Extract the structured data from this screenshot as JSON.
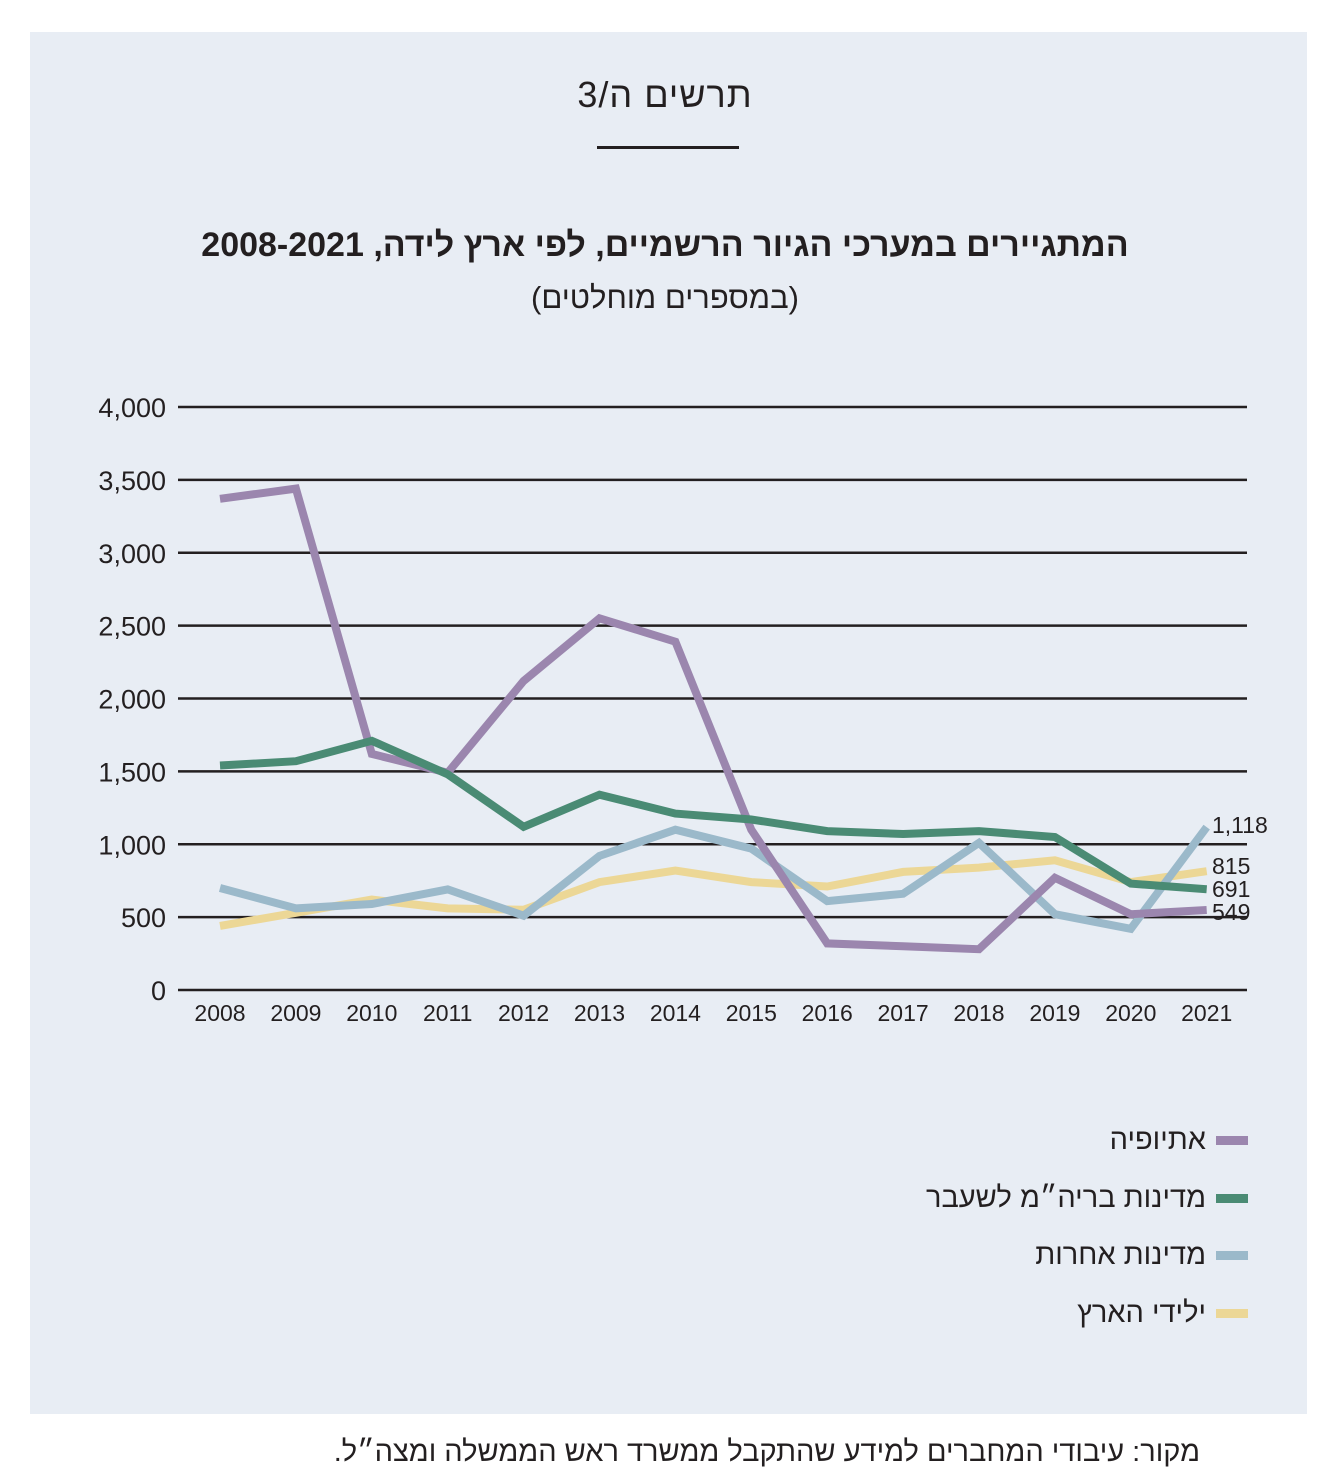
{
  "header": {
    "kicker": "תרשים ה/3",
    "title": "המתגיירים במערכי הגיור הרשמיים, לפי ארץ לידה, 2008-2021",
    "subtitle": "(במספרים מוחלטים)"
  },
  "source": "מקור: עיבודי המחברים למידע שהתקבל ממשרד ראש הממשלה ומצה״ל.",
  "chart_data": {
    "type": "line",
    "x": [
      "2008",
      "2009",
      "2010",
      "2011",
      "2012",
      "2013",
      "2014",
      "2015",
      "2016",
      "2017",
      "2018",
      "2019",
      "2020",
      "2021"
    ],
    "yticks": [
      "0",
      "500",
      "1,000",
      "1,500",
      "2,000",
      "2,500",
      "3,000",
      "3,500",
      "4,000"
    ],
    "ylim": [
      0,
      4000
    ],
    "grid": true,
    "legend_position": "bottom-right",
    "series": [
      {
        "name": "אתיופיה",
        "color": "#9b86ae",
        "values": [
          3370,
          3440,
          1620,
          1490,
          2120,
          2550,
          2390,
          1100,
          320,
          300,
          280,
          770,
          520,
          549
        ],
        "end_label": "549"
      },
      {
        "name": "מדינות בריה״מ לשעבר",
        "color": "#4a8b74",
        "values": [
          1540,
          1570,
          1710,
          1480,
          1120,
          1340,
          1210,
          1170,
          1090,
          1070,
          1090,
          1050,
          730,
          691
        ],
        "end_label": "691"
      },
      {
        "name": "מדינות אחרות",
        "color": "#9bb9ca",
        "values": [
          700,
          560,
          590,
          690,
          510,
          920,
          1100,
          970,
          610,
          660,
          1010,
          520,
          420,
          1118
        ],
        "end_label": "1,118"
      },
      {
        "name": "ילידי הארץ",
        "color": "#ecd796",
        "values": [
          440,
          530,
          620,
          560,
          550,
          740,
          820,
          740,
          710,
          810,
          840,
          890,
          740,
          815
        ],
        "end_label": "815"
      }
    ]
  }
}
